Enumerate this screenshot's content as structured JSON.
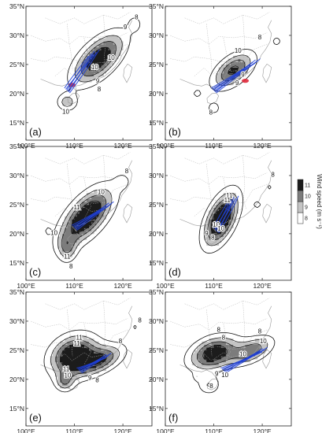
{
  "chart_data": {
    "type": "contour",
    "colorbar": {
      "title": "Wind speed (m s⁻¹)",
      "levels": [
        "8",
        "9",
        "10",
        "11"
      ],
      "colors": [
        "#ffffff",
        "#c4c4c4",
        "#7c7c7c",
        "#1c1c1c"
      ]
    },
    "x_ticks": [
      "100°E",
      "110°E",
      "120°E"
    ],
    "y_ticks": [
      "15°N",
      "20°N",
      "25°N",
      "30°N",
      "35°N"
    ],
    "lon_range": [
      100,
      126
    ],
    "lat_range": [
      12,
      35
    ],
    "panels": [
      {
        "label": "(a)",
        "cells": [
          {
            "lon": 115,
            "lat": 26,
            "sx": 4.2,
            "sy": 2.0,
            "rot": 36,
            "a": 5.0
          },
          {
            "lon": 108.5,
            "lat": 18.5,
            "sx": 1.4,
            "sy": 1.0,
            "rot": 0,
            "a": 2.5
          },
          {
            "lon": 122.5,
            "lat": 32,
            "sx": 1.0,
            "sy": 1.0,
            "rot": 0,
            "a": 1.3
          }
        ],
        "contour_labels": [
          {
            "t": "8",
            "lon": 122.8,
            "lat": 32.8
          },
          {
            "t": "9",
            "lon": 120.5,
            "lat": 31.1
          },
          {
            "t": "10",
            "lon": 117.6,
            "lat": 25.8
          },
          {
            "t": "10",
            "lon": 114.2,
            "lat": 24.2
          },
          {
            "t": "9",
            "lon": 114.8,
            "lat": 21.8
          },
          {
            "t": "8",
            "lon": 115.1,
            "lat": 20.4
          },
          {
            "t": "10",
            "lon": 108.2,
            "lat": 16.5
          }
        ],
        "hotspots": [
          {
            "lon": 109.5,
            "lat": 21.5
          }
        ],
        "track_start": [
          108.5,
          20.5
        ],
        "track_end": [
          114.0,
          27.0
        ]
      },
      {
        "label": "(b)",
        "cells": [
          {
            "lon": 114,
            "lat": 24,
            "sx": 3.2,
            "sy": 1.6,
            "rot": 30,
            "a": 4.3
          },
          {
            "lon": 123,
            "lat": 29,
            "sx": 1.1,
            "sy": 0.9,
            "rot": 0,
            "a": 1.2
          },
          {
            "lon": 106.5,
            "lat": 20,
            "sx": 1.0,
            "sy": 0.8,
            "rot": 0,
            "a": 1.1
          },
          {
            "lon": 110,
            "lat": 17.5,
            "sx": 1.0,
            "sy": 0.8,
            "rot": 0,
            "a": 1.6
          }
        ],
        "contour_labels": [
          {
            "t": "8",
            "lon": 119.5,
            "lat": 29.3
          },
          {
            "t": "10",
            "lon": 115.0,
            "lat": 27.0
          },
          {
            "t": "9",
            "lon": 116.0,
            "lat": 22.9
          },
          {
            "t": "9",
            "lon": 114.8,
            "lat": 21.5
          },
          {
            "t": "8",
            "lon": 109.4,
            "lat": 16.4
          }
        ],
        "hotspots": [
          {
            "lon": 116.5,
            "lat": 22.2
          }
        ],
        "track_start": [
          110.0,
          20.5
        ],
        "track_end": [
          118.5,
          25.5
        ]
      },
      {
        "label": "(c)",
        "cells": [
          {
            "lon": 112.5,
            "lat": 23,
            "sx": 4.4,
            "sy": 2.1,
            "rot": 40,
            "a": 5.6
          },
          {
            "lon": 108.5,
            "lat": 17.5,
            "sx": 1.3,
            "sy": 1.6,
            "rot": 0,
            "a": 2.4
          },
          {
            "lon": 120,
            "lat": 29,
            "sx": 1.2,
            "sy": 1.0,
            "rot": 0,
            "a": 1.1
          },
          {
            "lon": 104.5,
            "lat": 20.5,
            "sx": 0.5,
            "sy": 0.5,
            "rot": 0,
            "a": 1.2
          }
        ],
        "contour_labels": [
          {
            "t": "8",
            "lon": 120.8,
            "lat": 30.4
          },
          {
            "t": "10",
            "lon": 115.5,
            "lat": 26.8
          },
          {
            "t": "11",
            "lon": 110.5,
            "lat": 24.2
          },
          {
            "t": "10",
            "lon": 105.8,
            "lat": 19.8
          },
          {
            "t": "11",
            "lon": 108.5,
            "lat": 15.7
          },
          {
            "t": "8",
            "lon": 109.3,
            "lat": 14.0
          }
        ],
        "hotspots": [],
        "track_start": [
          110.0,
          21.0
        ],
        "track_end": [
          117.0,
          25.0
        ]
      },
      {
        "label": "(d)",
        "cells": [
          {
            "lon": 111.5,
            "lat": 22.5,
            "sx": 3.5,
            "sy": 1.8,
            "rot": 58,
            "a": 5.8
          },
          {
            "lon": 119,
            "lat": 25,
            "sx": 1.0,
            "sy": 0.8,
            "rot": 0,
            "a": 1.2
          },
          {
            "lon": 121.5,
            "lat": 28,
            "sx": 0.9,
            "sy": 0.9,
            "rot": 0,
            "a": 1.1
          }
        ],
        "contour_labels": [
          {
            "t": "8",
            "lon": 122.2,
            "lat": 29.8
          },
          {
            "t": "11",
            "lon": 113.2,
            "lat": 26.2
          },
          {
            "t": "11",
            "lon": 112.8,
            "lat": 25.4
          },
          {
            "t": "10",
            "lon": 110.5,
            "lat": 21.2
          },
          {
            "t": "10",
            "lon": 111.5,
            "lat": 20.5
          },
          {
            "t": "9",
            "lon": 108.5,
            "lat": 19.7
          },
          {
            "t": "8",
            "lon": 109.8,
            "lat": 19.0
          }
        ],
        "hotspots": [],
        "track_start": [
          110.5,
          20.5
        ],
        "track_end": [
          114.0,
          26.0
        ]
      },
      {
        "label": "(e)",
        "cells": [
          {
            "lon": 110,
            "lat": 24,
            "sx": 3.4,
            "sy": 2.3,
            "rot": 15,
            "a": 5.8
          },
          {
            "lon": 116,
            "lat": 23.5,
            "sx": 3.2,
            "sy": 1.4,
            "rot": 20,
            "a": 3.4
          },
          {
            "lon": 108,
            "lat": 19.5,
            "sx": 1.3,
            "sy": 1.1,
            "rot": 0,
            "a": 2.4
          },
          {
            "lon": 122.5,
            "lat": 29,
            "sx": 0.8,
            "sy": 0.8,
            "rot": 0,
            "a": 1.1
          }
        ],
        "contour_labels": [
          {
            "t": "8",
            "lon": 123.5,
            "lat": 29.8
          },
          {
            "t": "8",
            "lon": 119.5,
            "lat": 26.2
          },
          {
            "t": "11",
            "lon": 111.0,
            "lat": 26.8
          },
          {
            "t": "11",
            "lon": 110.5,
            "lat": 25.8
          },
          {
            "t": "11",
            "lon": 108.3,
            "lat": 21.4
          },
          {
            "t": "10",
            "lon": 108.6,
            "lat": 20.3
          },
          {
            "t": "9",
            "lon": 113.2,
            "lat": 19.9
          },
          {
            "t": "8",
            "lon": 114.7,
            "lat": 19.5
          }
        ],
        "hotspots": [],
        "track_start": [
          111.0,
          21.5
        ],
        "track_end": [
          116.5,
          24.0
        ]
      },
      {
        "label": "(f)",
        "cells": [
          {
            "lon": 110,
            "lat": 24.5,
            "sx": 3.5,
            "sy": 1.8,
            "rot": 15,
            "a": 5.0
          },
          {
            "lon": 118,
            "lat": 25,
            "sx": 3.0,
            "sy": 1.3,
            "rot": 20,
            "a": 3.6
          },
          {
            "lon": 109,
            "lat": 19,
            "sx": 1.6,
            "sy": 1.1,
            "rot": 0,
            "a": 2.0
          },
          {
            "lon": 106.5,
            "lat": 20.5,
            "sx": 0.5,
            "sy": 0.5,
            "rot": 0,
            "a": 1.2
          }
        ],
        "contour_labels": [
          {
            "t": "8",
            "lon": 111.0,
            "lat": 28.2
          },
          {
            "t": "10",
            "lon": 120.2,
            "lat": 26.2
          },
          {
            "t": "10",
            "lon": 116.0,
            "lat": 24.0
          },
          {
            "t": "8",
            "lon": 112.0,
            "lat": 26.8
          },
          {
            "t": "8",
            "lon": 119.5,
            "lat": 27.9
          },
          {
            "t": "10",
            "lon": 112.3,
            "lat": 20.4
          },
          {
            "t": "9",
            "lon": 110.6,
            "lat": 20.6
          },
          {
            "t": "8",
            "lon": 109.5,
            "lat": 18.5
          }
        ],
        "hotspots": [],
        "track_start": [
          112.0,
          21.5
        ],
        "track_end": [
          120.0,
          25.0
        ]
      }
    ]
  }
}
